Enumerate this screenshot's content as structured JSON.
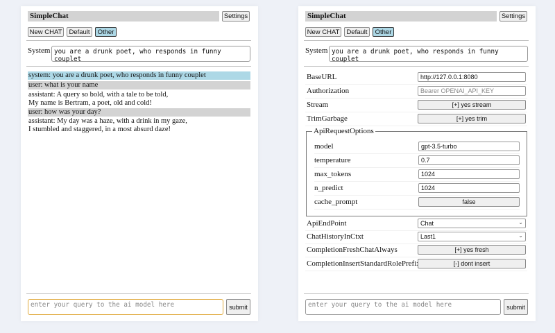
{
  "app": {
    "title": "SimpleChat",
    "settings_label": "Settings"
  },
  "toolbar": {
    "new_chat": "New CHAT",
    "default": "Default",
    "other": "Other"
  },
  "system": {
    "label": "System",
    "value": "you are a drunk poet, who responds in funny couplet"
  },
  "chat": [
    {
      "role": "system",
      "lines": [
        "system: you are a drunk poet, who responds in funny couplet"
      ]
    },
    {
      "role": "user",
      "lines": [
        "user: what is your name"
      ]
    },
    {
      "role": "assistant",
      "lines": [
        "assistant: A query so bold, with a tale to be told,",
        "My name is Bertram, a poet, old and cold!"
      ]
    },
    {
      "role": "user",
      "lines": [
        "user: how was your day?"
      ]
    },
    {
      "role": "assistant",
      "lines": [
        "assistant: My day was a haze, with a drink in my gaze,",
        "I stumbled and staggered, in a most absurd daze!"
      ]
    }
  ],
  "settings": {
    "base_url": {
      "label": "BaseURL",
      "value": "http://127.0.0.1:8080"
    },
    "authorization": {
      "label": "Authorization",
      "placeholder": "Bearer OPENAI_API_KEY"
    },
    "stream": {
      "label": "Stream",
      "value": "[+] yes stream"
    },
    "trim_garbage": {
      "label": "TrimGarbage",
      "value": "[+] yes trim"
    },
    "api_request_options": {
      "legend": "ApiRequestOptions",
      "model": {
        "label": "model",
        "value": "gpt-3.5-turbo"
      },
      "temperature": {
        "label": "temperature",
        "value": "0.7"
      },
      "max_tokens": {
        "label": "max_tokens",
        "value": "1024"
      },
      "n_predict": {
        "label": "n_predict",
        "value": "1024"
      },
      "cache_prompt": {
        "label": "cache_prompt",
        "value": "false"
      }
    },
    "api_endpoint": {
      "label": "ApiEndPoint",
      "value": "Chat"
    },
    "chat_history": {
      "label": "ChatHistoryInCtxt",
      "value": "Last1"
    },
    "fresh_chat": {
      "label": "CompletionFreshChatAlways",
      "value": "[+] yes fresh"
    },
    "role_prefix": {
      "label": "CompletionInsertStandardRolePrefix",
      "value": "[-] dont insert"
    }
  },
  "input": {
    "placeholder": "enter your query to the ai model here",
    "submit_label": "submit"
  },
  "colors": {
    "background": "#eef1f7",
    "system_msg": "#add8e6",
    "user_msg": "#d3d3d3",
    "focus": "#e0a93a"
  }
}
